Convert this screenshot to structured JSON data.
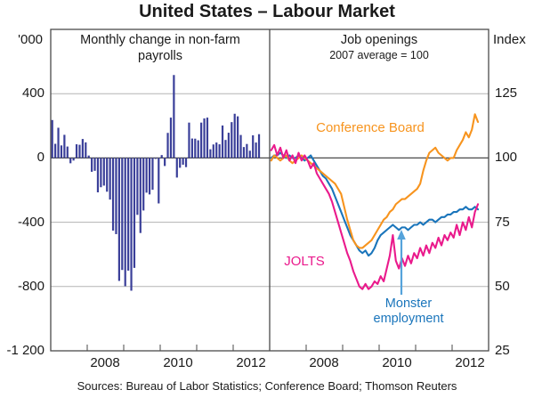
{
  "title": "United States – Labour Market",
  "footer": {
    "sources": "Sources: Bureau of Labor Statistics; Conference Board; Thomson Reuters"
  },
  "colors": {
    "text": "#1A1A1A",
    "grid": "#B3B3B3",
    "axis": "#4A4A4A",
    "bar_blue": "#3A3F99",
    "conference_board_orange": "#F7941E",
    "jolts_magenta": "#EA1A8C",
    "monster_blue": "#1A75BB",
    "arrow_blue": "#55A3DB"
  },
  "annotations": {
    "conference_board": "Conference Board",
    "jolts": "JOLTS",
    "monster_line1": "Monster",
    "monster_line2": "employment"
  },
  "chart_data": [
    {
      "type": "bar",
      "title": "Monthly change in non-farm payrolls",
      "title_lines": [
        "Monthly change in non-farm",
        "payrolls"
      ],
      "unit_label": "'000",
      "ylim": [
        -1200,
        800
      ],
      "yticks": [
        400,
        0,
        -400,
        -800,
        -1200
      ],
      "ytick_labels": [
        "400",
        "0",
        "-400",
        "-800",
        "-1 200"
      ],
      "x_start": 2007.0,
      "x_end": 2013.0,
      "x_months_start": "2007-01",
      "xtick_labels": [
        "2008",
        "2010",
        "2012"
      ],
      "grid_on": true,
      "bar_color": "#3A3F99",
      "values": [
        236,
        88,
        188,
        78,
        144,
        71,
        -33,
        -16,
        85,
        82,
        118,
        97,
        15,
        -86,
        -80,
        -214,
        -182,
        -172,
        -210,
        -259,
        -452,
        -474,
        -765,
        -697,
        -798,
        -701,
        -826,
        -684,
        -354,
        -467,
        -327,
        -216,
        -227,
        -198,
        -6,
        -283,
        18,
        -50,
        156,
        251,
        516,
        -122,
        -61,
        -42,
        -57,
        220,
        121,
        120,
        110,
        220,
        246,
        251,
        54,
        84,
        96,
        85,
        202,
        112,
        157,
        223,
        275,
        259,
        143,
        68,
        87,
        45,
        141,
        96,
        148
      ]
    },
    {
      "type": "line",
      "title": "Job openings",
      "subtitle": "2007 average = 100",
      "unit_label": "Index",
      "ylim": [
        25,
        150
      ],
      "yticks": [
        125,
        100,
        75,
        50,
        25
      ],
      "ytick_labels": [
        "125",
        "100",
        "75",
        "50",
        "25"
      ],
      "x_start": 2007.0,
      "x_end": 2013.0,
      "x_months_start": "2007-01",
      "xtick_labels": [
        "2008",
        "2010",
        "2012"
      ],
      "reference_line": 100,
      "legend_position": "in-plot-labels",
      "series": [
        {
          "name": "Monster employment",
          "color": "#1A75BB",
          "values": [
            100,
            101,
            101,
            102,
            101,
            100,
            101,
            100,
            100,
            101,
            100,
            99,
            100,
            101,
            99,
            97,
            95,
            93,
            92,
            90,
            88,
            85,
            82,
            79,
            76,
            73,
            70,
            68,
            66,
            64,
            63,
            64,
            62,
            63,
            65,
            68,
            70,
            71,
            72,
            73,
            74,
            73,
            72,
            73,
            73,
            72,
            73,
            74,
            74,
            75,
            74,
            75,
            76,
            76,
            75,
            76,
            77,
            77,
            78,
            78,
            79,
            79,
            80,
            80,
            81,
            80,
            80,
            81,
            80
          ]
        },
        {
          "name": "Conference Board",
          "color": "#F7941E",
          "values": [
            99,
            101,
            100,
            99,
            100,
            101,
            99,
            98,
            99,
            100,
            101,
            100,
            99,
            98,
            97,
            96,
            95,
            94,
            93,
            92,
            91,
            90,
            88,
            86,
            81,
            76,
            72,
            68,
            66,
            65,
            65,
            66,
            67,
            68,
            70,
            72,
            74,
            76,
            77,
            79,
            80,
            82,
            83,
            84,
            84,
            85,
            86,
            87,
            88,
            90,
            95,
            99,
            102,
            103,
            104,
            102,
            101,
            100,
            99,
            100,
            100,
            103,
            105,
            107,
            110,
            108,
            111,
            117,
            114
          ]
        },
        {
          "name": "JOLTS",
          "color": "#EA1A8C",
          "values": [
            103,
            105,
            101,
            104,
            100,
            103,
            99,
            101,
            98,
            102,
            99,
            101,
            99,
            96,
            98,
            94,
            92,
            90,
            88,
            86,
            83,
            79,
            75,
            71,
            67,
            63,
            60,
            56,
            53,
            50,
            49,
            51,
            49,
            50,
            52,
            51,
            54,
            52,
            57,
            62,
            70,
            60,
            57,
            61,
            58,
            62,
            59,
            63,
            61,
            65,
            62,
            66,
            63,
            67,
            65,
            69,
            66,
            70,
            68,
            71,
            69,
            74,
            70,
            75,
            72,
            77,
            73,
            79,
            82
          ]
        }
      ]
    }
  ]
}
